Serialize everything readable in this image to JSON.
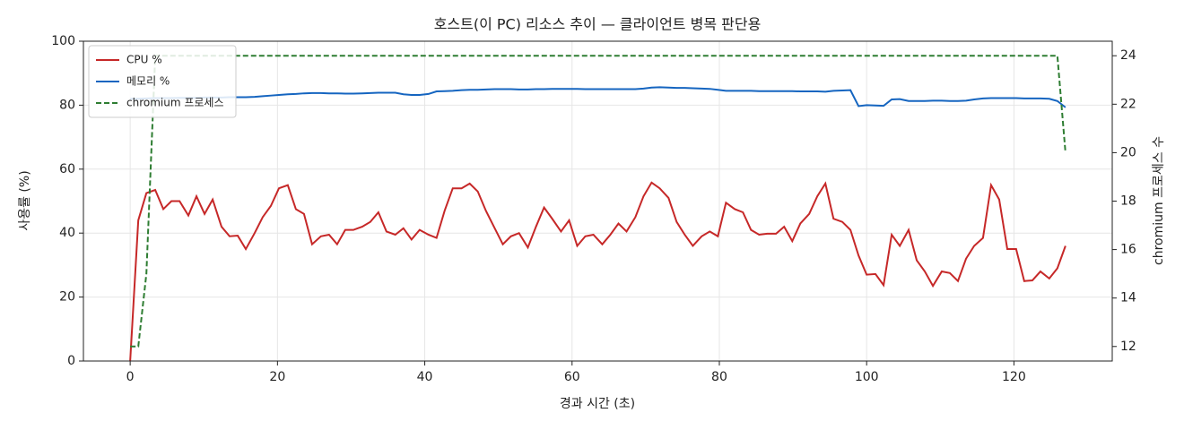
{
  "chart_data": {
    "type": "line",
    "title": "호스트(이 PC) 리소스 추이 — 클라이언트 병목 판단용",
    "xlabel": "경과 시간 (초)",
    "ylabel": "사용률 (%)",
    "y2label": "chromium 프로세스 수",
    "x": [
      0,
      1.1,
      2.2,
      3.4,
      4.5,
      5.6,
      6.7,
      7.9,
      9.0,
      10.1,
      11.2,
      12.4,
      13.5,
      14.6,
      15.7,
      16.9,
      18.0,
      19.1,
      20.2,
      21.4,
      22.5,
      23.6,
      24.7,
      25.9,
      27.0,
      28.1,
      29.2,
      30.3,
      31.5,
      32.6,
      33.7,
      34.8,
      36.0,
      37.1,
      38.2,
      39.3,
      40.5,
      41.6,
      42.7,
      43.8,
      45.0,
      46.1,
      47.2,
      48.3,
      49.5,
      50.6,
      51.7,
      52.8,
      54.0,
      55.1,
      56.2,
      57.3,
      58.5,
      59.6,
      60.7,
      61.8,
      62.9,
      64.1,
      65.2,
      66.3,
      67.4,
      68.6,
      69.7,
      70.8,
      71.9,
      73.1,
      74.2,
      75.3,
      76.4,
      77.6,
      78.7,
      79.8,
      80.9,
      82.1,
      83.2,
      84.3,
      85.4,
      86.5,
      87.7,
      88.8,
      89.9,
      91.0,
      92.2,
      93.3,
      94.4,
      95.5,
      96.7,
      97.8,
      98.9,
      100.0,
      101.2,
      102.3,
      103.4,
      104.5,
      105.7,
      106.8,
      107.9,
      109.0,
      110.2,
      111.3,
      112.4,
      113.5,
      114.6,
      115.8,
      116.9,
      118.0,
      119.1,
      120.3,
      121.4,
      122.5,
      123.6,
      124.8,
      125.9,
      127.0
    ],
    "series": [
      {
        "name": "CPU %",
        "color": "#c62828",
        "values": [
          0,
          44,
          52.5,
          53.5,
          47.5,
          50,
          50,
          45.5,
          51.5,
          46,
          50.5,
          42,
          39,
          39.2,
          35,
          40,
          45,
          48.5,
          54,
          55,
          47.5,
          46,
          36.5,
          39,
          39.5,
          36.5,
          41,
          41,
          42,
          43.5,
          46.5,
          40.5,
          39.5,
          41.5,
          38,
          41,
          39.5,
          38.5,
          47,
          54,
          54,
          55.5,
          53,
          47,
          41.5,
          36.5,
          39,
          40,
          35.5,
          42,
          48,
          44.5,
          40.5,
          44,
          36,
          39,
          39.5,
          36.5,
          39.5,
          43,
          40.5,
          45,
          51.5,
          55.8,
          54,
          51,
          43.5,
          39.5,
          36,
          39,
          40.5,
          39,
          49.5,
          47.5,
          46.5,
          41,
          39.5,
          39.8,
          39.8,
          42,
          37.5,
          43,
          46,
          51.5,
          55.5,
          44.5,
          43.5,
          41,
          33,
          27,
          27.2,
          23.7,
          39.5,
          36,
          41,
          31.5,
          28,
          23.5,
          28,
          27.5,
          25,
          32,
          36,
          38.5,
          55,
          50.5,
          35,
          35,
          25,
          25.2,
          28,
          25.8,
          29,
          36
        ]
      },
      {
        "name": "메모리 %",
        "color": "#1565c0",
        "values": [
          82,
          82,
          82.1,
          82.2,
          82.2,
          82.2,
          82.3,
          82.3,
          82.3,
          82.4,
          82.4,
          82.4,
          82.5,
          82.5,
          82.5,
          82.6,
          82.8,
          83.0,
          83.2,
          83.4,
          83.5,
          83.7,
          83.8,
          83.8,
          83.7,
          83.7,
          83.6,
          83.6,
          83.7,
          83.8,
          83.9,
          83.9,
          83.9,
          83.4,
          83.2,
          83.2,
          83.5,
          84.3,
          84.4,
          84.5,
          84.7,
          84.8,
          84.8,
          84.9,
          85.0,
          85.0,
          85.0,
          84.9,
          84.9,
          85.0,
          85.0,
          85.1,
          85.1,
          85.1,
          85.1,
          85.0,
          85.0,
          85.0,
          85.0,
          85.0,
          85.0,
          85.0,
          85.2,
          85.5,
          85.6,
          85.5,
          85.4,
          85.4,
          85.3,
          85.2,
          85.1,
          84.8,
          84.5,
          84.5,
          84.5,
          84.5,
          84.4,
          84.4,
          84.4,
          84.4,
          84.4,
          84.3,
          84.3,
          84.3,
          84.2,
          84.5,
          84.6,
          84.7,
          79.7,
          80.0,
          79.9,
          79.8,
          81.8,
          81.9,
          81.3,
          81.3,
          81.3,
          81.4,
          81.4,
          81.3,
          81.3,
          81.4,
          81.8,
          82.1,
          82.2,
          82.2,
          82.2,
          82.2,
          82.1,
          82.1,
          82.1,
          82.0,
          81.3,
          79.3
        ]
      },
      {
        "name": "chromium 프로세스",
        "color": "#2e7d32",
        "dashed": true,
        "axis": "y2",
        "values": [
          12,
          12,
          15,
          24,
          24,
          24,
          24,
          24,
          24,
          24,
          24,
          24,
          24,
          24,
          24,
          24,
          24,
          24,
          24,
          24,
          24,
          24,
          24,
          24,
          24,
          24,
          24,
          24,
          24,
          24,
          24,
          24,
          24,
          24,
          24,
          24,
          24,
          24,
          24,
          24,
          24,
          24,
          24,
          24,
          24,
          24,
          24,
          24,
          24,
          24,
          24,
          24,
          24,
          24,
          24,
          24,
          24,
          24,
          24,
          24,
          24,
          24,
          24,
          24,
          24,
          24,
          24,
          24,
          24,
          24,
          24,
          24,
          24,
          24,
          24,
          24,
          24,
          24,
          24,
          24,
          24,
          24,
          24,
          24,
          24,
          24,
          24,
          24,
          24,
          24,
          24,
          24,
          24,
          24,
          24,
          24,
          24,
          24,
          24,
          24,
          24,
          24,
          24,
          24,
          24,
          24,
          24,
          24,
          24,
          24,
          24,
          24,
          24,
          20
        ]
      }
    ],
    "xlim": [
      -6.35,
      133.35
    ],
    "xticks": [
      0,
      20,
      40,
      60,
      80,
      100,
      120
    ],
    "ylim": [
      0,
      100
    ],
    "yticks": [
      0,
      20,
      40,
      60,
      80,
      100
    ],
    "y2lim": [
      11.4,
      24.6
    ],
    "y2ticks": [
      12,
      14,
      16,
      18,
      20,
      22,
      24
    ],
    "grid": true,
    "legend": "upper left"
  }
}
